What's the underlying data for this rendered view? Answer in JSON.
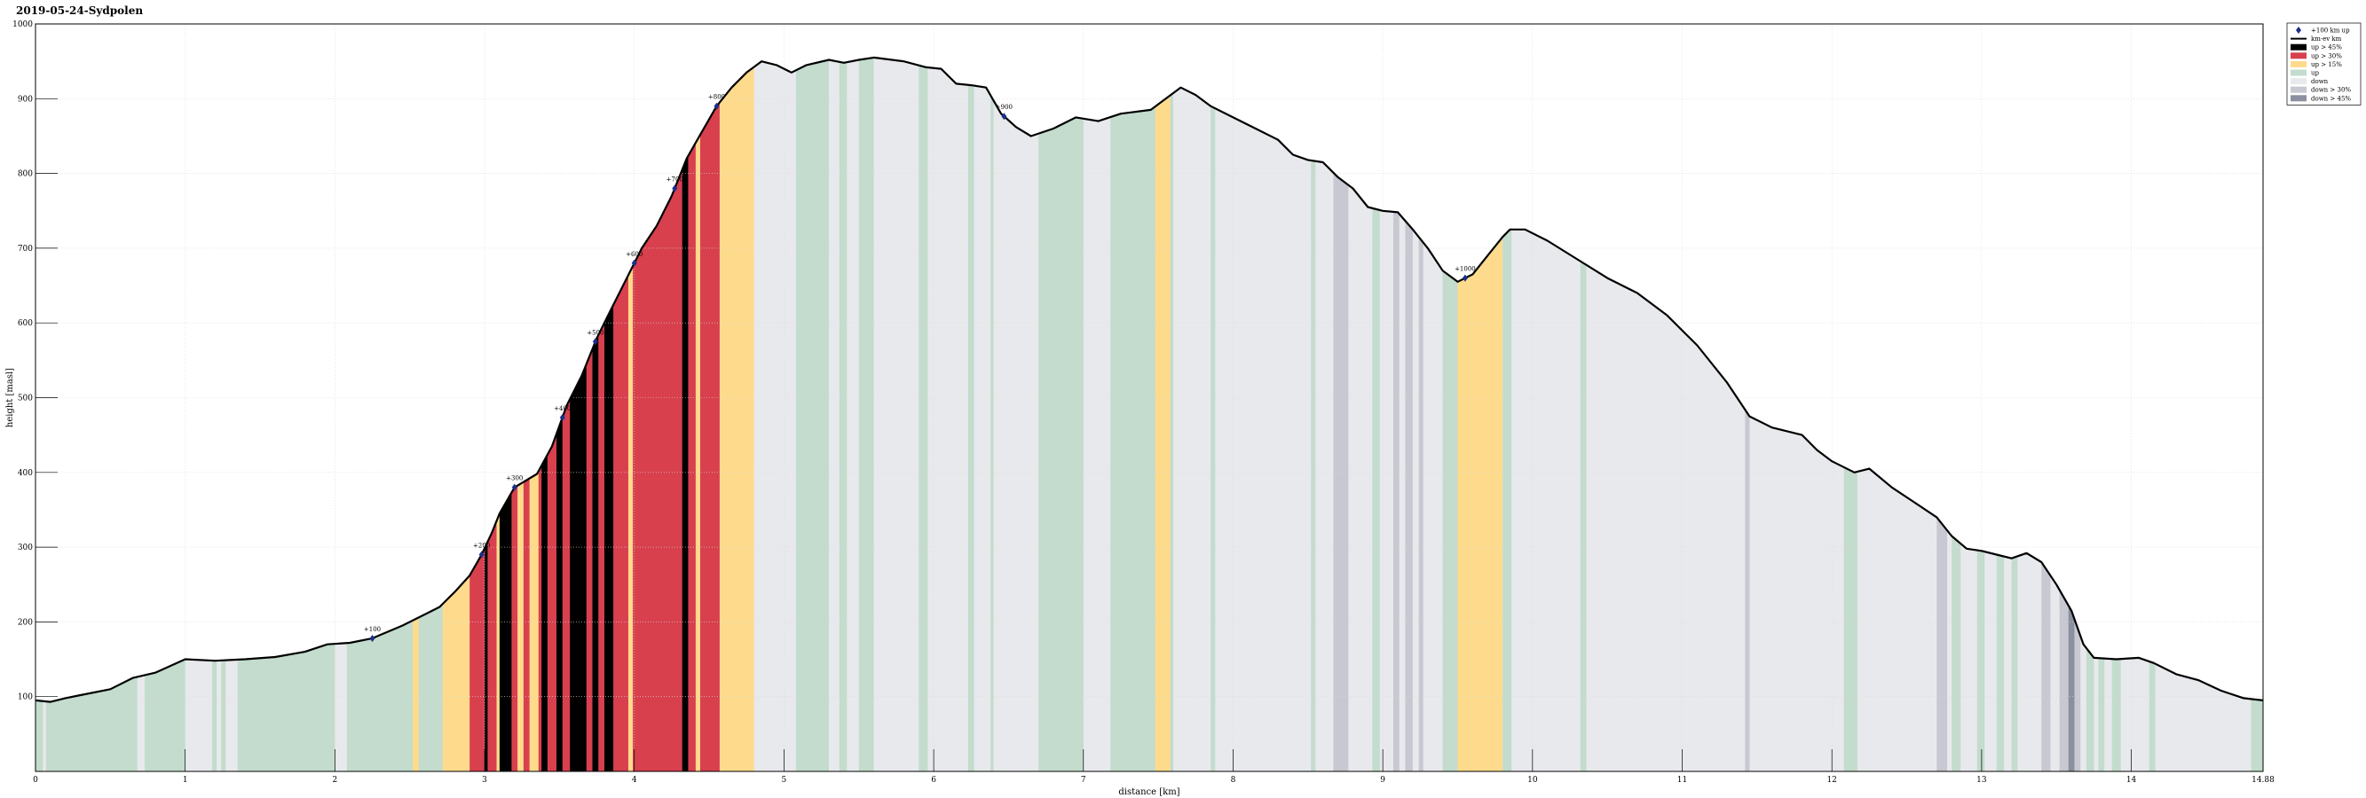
{
  "chart_data": {
    "type": "area",
    "title": "2019-05-24-Sydpolen",
    "xlabel": "distance [km]",
    "ylabel": "height [masl]",
    "xlim": [
      0,
      14.88
    ],
    "ylim": [
      0,
      1000
    ],
    "x_ticks": [
      0,
      1,
      2,
      3,
      4,
      5,
      6,
      7,
      8,
      9,
      10,
      11,
      12,
      13,
      14
    ],
    "x_end_label": "14.88",
    "y_ticks": [
      100,
      200,
      300,
      400,
      500,
      600,
      700,
      800,
      900,
      1000
    ],
    "grid": true,
    "legend_position": "top-right",
    "legend": [
      {
        "key": "marker",
        "label": "+100 km up"
      },
      {
        "key": "line",
        "label": "km·ev km"
      },
      {
        "key": "up45",
        "label": "up > 45%"
      },
      {
        "key": "up30",
        "label": "up > 30%"
      },
      {
        "key": "up15",
        "label": "up > 15%"
      },
      {
        "key": "up",
        "label": "up"
      },
      {
        "key": "down",
        "label": "down"
      },
      {
        "key": "down30",
        "label": "down > 30%"
      },
      {
        "key": "down45",
        "label": "down > 45%"
      }
    ],
    "colors": {
      "up": "#c3dccd",
      "down": "#e8e9ec",
      "up15": "#fedb8c",
      "up30": "#d8404e",
      "up45": "#000000",
      "down30": "#c7c8d1",
      "down45": "#8c8fa0",
      "line": "#000000",
      "marker": "#1a2f8a"
    },
    "profile": [
      [
        0,
        95
      ],
      [
        0.1,
        93
      ],
      [
        0.2,
        98
      ],
      [
        0.3,
        102
      ],
      [
        0.5,
        110
      ],
      [
        0.65,
        125
      ],
      [
        0.8,
        132
      ],
      [
        1.0,
        150
      ],
      [
        1.2,
        148
      ],
      [
        1.4,
        150
      ],
      [
        1.6,
        153
      ],
      [
        1.8,
        160
      ],
      [
        1.95,
        170
      ],
      [
        2.1,
        172
      ],
      [
        2.25,
        178
      ],
      [
        2.45,
        195
      ],
      [
        2.6,
        210
      ],
      [
        2.7,
        220
      ],
      [
        2.8,
        240
      ],
      [
        2.9,
        262
      ],
      [
        2.98,
        290
      ],
      [
        3.05,
        320
      ],
      [
        3.1,
        345
      ],
      [
        3.2,
        380
      ],
      [
        3.3,
        392
      ],
      [
        3.35,
        398
      ],
      [
        3.45,
        435
      ],
      [
        3.55,
        490
      ],
      [
        3.65,
        530
      ],
      [
        3.75,
        580
      ],
      [
        3.85,
        620
      ],
      [
        3.95,
        660
      ],
      [
        4.05,
        700
      ],
      [
        4.15,
        730
      ],
      [
        4.25,
        770
      ],
      [
        4.35,
        820
      ],
      [
        4.45,
        855
      ],
      [
        4.55,
        890
      ],
      [
        4.65,
        915
      ],
      [
        4.75,
        935
      ],
      [
        4.85,
        950
      ],
      [
        4.95,
        945
      ],
      [
        5.05,
        935
      ],
      [
        5.15,
        945
      ],
      [
        5.3,
        952
      ],
      [
        5.4,
        948
      ],
      [
        5.5,
        952
      ],
      [
        5.6,
        955
      ],
      [
        5.8,
        950
      ],
      [
        5.95,
        942
      ],
      [
        6.05,
        940
      ],
      [
        6.15,
        920
      ],
      [
        6.25,
        918
      ],
      [
        6.35,
        915
      ],
      [
        6.45,
        880
      ],
      [
        6.55,
        862
      ],
      [
        6.65,
        850
      ],
      [
        6.8,
        860
      ],
      [
        6.95,
        875
      ],
      [
        7.1,
        870
      ],
      [
        7.25,
        880
      ],
      [
        7.45,
        885
      ],
      [
        7.55,
        900
      ],
      [
        7.65,
        915
      ],
      [
        7.75,
        905
      ],
      [
        7.85,
        890
      ],
      [
        8.0,
        875
      ],
      [
        8.15,
        860
      ],
      [
        8.3,
        845
      ],
      [
        8.4,
        825
      ],
      [
        8.5,
        818
      ],
      [
        8.6,
        815
      ],
      [
        8.7,
        795
      ],
      [
        8.8,
        780
      ],
      [
        8.9,
        755
      ],
      [
        9.0,
        750
      ],
      [
        9.1,
        748
      ],
      [
        9.2,
        725
      ],
      [
        9.3,
        700
      ],
      [
        9.4,
        670
      ],
      [
        9.5,
        655
      ],
      [
        9.6,
        665
      ],
      [
        9.7,
        690
      ],
      [
        9.8,
        715
      ],
      [
        9.85,
        725
      ],
      [
        9.95,
        725
      ],
      [
        10.1,
        710
      ],
      [
        10.3,
        685
      ],
      [
        10.5,
        660
      ],
      [
        10.7,
        640
      ],
      [
        10.9,
        610
      ],
      [
        11.1,
        570
      ],
      [
        11.3,
        520
      ],
      [
        11.45,
        475
      ],
      [
        11.6,
        460
      ],
      [
        11.8,
        450
      ],
      [
        11.9,
        430
      ],
      [
        12.0,
        415
      ],
      [
        12.15,
        400
      ],
      [
        12.25,
        405
      ],
      [
        12.4,
        380
      ],
      [
        12.55,
        360
      ],
      [
        12.7,
        340
      ],
      [
        12.8,
        315
      ],
      [
        12.9,
        298
      ],
      [
        13.0,
        295
      ],
      [
        13.1,
        290
      ],
      [
        13.2,
        285
      ],
      [
        13.3,
        292
      ],
      [
        13.4,
        280
      ],
      [
        13.5,
        250
      ],
      [
        13.6,
        215
      ],
      [
        13.68,
        170
      ],
      [
        13.75,
        152
      ],
      [
        13.9,
        150
      ],
      [
        14.05,
        152
      ],
      [
        14.15,
        145
      ],
      [
        14.3,
        130
      ],
      [
        14.45,
        122
      ],
      [
        14.6,
        108
      ],
      [
        14.75,
        98
      ],
      [
        14.88,
        95
      ]
    ],
    "segments": [
      [
        0,
        0.05,
        "up"
      ],
      [
        0.05,
        0.07,
        "down"
      ],
      [
        0.07,
        0.68,
        "up"
      ],
      [
        0.68,
        0.73,
        "down"
      ],
      [
        0.73,
        1.0,
        "up"
      ],
      [
        1.0,
        1.18,
        "down"
      ],
      [
        1.18,
        1.21,
        "up"
      ],
      [
        1.21,
        1.24,
        "down"
      ],
      [
        1.24,
        1.27,
        "up"
      ],
      [
        1.27,
        1.35,
        "down"
      ],
      [
        1.35,
        2.0,
        "up"
      ],
      [
        2.0,
        2.08,
        "down"
      ],
      [
        2.08,
        2.52,
        "up"
      ],
      [
        2.52,
        2.56,
        "up15"
      ],
      [
        2.56,
        2.72,
        "up"
      ],
      [
        2.72,
        2.9,
        "up15"
      ],
      [
        2.9,
        3.0,
        "up30"
      ],
      [
        3.0,
        3.02,
        "up45"
      ],
      [
        3.02,
        3.08,
        "up30"
      ],
      [
        3.08,
        3.1,
        "up15"
      ],
      [
        3.1,
        3.18,
        "up45"
      ],
      [
        3.18,
        3.22,
        "up30"
      ],
      [
        3.22,
        3.26,
        "up15"
      ],
      [
        3.26,
        3.3,
        "up30"
      ],
      [
        3.3,
        3.36,
        "up15"
      ],
      [
        3.36,
        3.38,
        "up30"
      ],
      [
        3.38,
        3.42,
        "up45"
      ],
      [
        3.42,
        3.48,
        "up30"
      ],
      [
        3.48,
        3.52,
        "up45"
      ],
      [
        3.52,
        3.57,
        "up30"
      ],
      [
        3.57,
        3.68,
        "up45"
      ],
      [
        3.68,
        3.72,
        "up30"
      ],
      [
        3.72,
        3.76,
        "up45"
      ],
      [
        3.76,
        3.8,
        "up30"
      ],
      [
        3.8,
        3.86,
        "up45"
      ],
      [
        3.86,
        3.96,
        "up30"
      ],
      [
        3.96,
        3.99,
        "up15"
      ],
      [
        3.99,
        4.32,
        "up30"
      ],
      [
        4.32,
        4.36,
        "up45"
      ],
      [
        4.36,
        4.41,
        "up30"
      ],
      [
        4.41,
        4.44,
        "up15"
      ],
      [
        4.44,
        4.57,
        "up30"
      ],
      [
        4.57,
        4.8,
        "up15"
      ],
      [
        4.8,
        5.08,
        "down"
      ],
      [
        5.08,
        5.3,
        "up"
      ],
      [
        5.3,
        5.37,
        "down"
      ],
      [
        5.37,
        5.42,
        "up"
      ],
      [
        5.42,
        5.5,
        "down"
      ],
      [
        5.5,
        5.6,
        "up"
      ],
      [
        5.6,
        5.9,
        "down"
      ],
      [
        5.9,
        5.96,
        "up"
      ],
      [
        5.96,
        6.23,
        "down"
      ],
      [
        6.23,
        6.27,
        "up"
      ],
      [
        6.27,
        6.38,
        "down"
      ],
      [
        6.38,
        6.4,
        "up"
      ],
      [
        6.4,
        6.7,
        "down"
      ],
      [
        6.7,
        7.0,
        "up"
      ],
      [
        7.0,
        7.18,
        "down"
      ],
      [
        7.18,
        7.48,
        "up"
      ],
      [
        7.48,
        7.58,
        "up15"
      ],
      [
        7.58,
        7.6,
        "up"
      ],
      [
        7.6,
        7.85,
        "down"
      ],
      [
        7.85,
        7.88,
        "up"
      ],
      [
        7.88,
        8.52,
        "down"
      ],
      [
        8.52,
        8.55,
        "up"
      ],
      [
        8.55,
        8.67,
        "down"
      ],
      [
        8.67,
        8.77,
        "down30"
      ],
      [
        8.77,
        8.93,
        "down"
      ],
      [
        8.93,
        8.98,
        "up"
      ],
      [
        8.98,
        9.07,
        "down"
      ],
      [
        9.07,
        9.11,
        "down30"
      ],
      [
        9.11,
        9.15,
        "down"
      ],
      [
        9.15,
        9.2,
        "down30"
      ],
      [
        9.2,
        9.24,
        "down"
      ],
      [
        9.24,
        9.27,
        "down30"
      ],
      [
        9.27,
        9.4,
        "down"
      ],
      [
        9.4,
        9.5,
        "up"
      ],
      [
        9.5,
        9.8,
        "up15"
      ],
      [
        9.8,
        9.86,
        "up"
      ],
      [
        9.86,
        10.32,
        "down"
      ],
      [
        10.32,
        10.36,
        "up"
      ],
      [
        10.36,
        11.42,
        "down"
      ],
      [
        11.42,
        11.45,
        "down30"
      ],
      [
        11.45,
        12.08,
        "down"
      ],
      [
        12.08,
        12.17,
        "up"
      ],
      [
        12.17,
        12.7,
        "down"
      ],
      [
        12.7,
        12.77,
        "down30"
      ],
      [
        12.77,
        12.8,
        "down"
      ],
      [
        12.8,
        12.86,
        "up"
      ],
      [
        12.86,
        12.97,
        "down"
      ],
      [
        12.97,
        13.02,
        "up"
      ],
      [
        13.02,
        13.1,
        "down"
      ],
      [
        13.1,
        13.15,
        "up"
      ],
      [
        13.15,
        13.2,
        "down"
      ],
      [
        13.2,
        13.24,
        "up"
      ],
      [
        13.24,
        13.4,
        "down"
      ],
      [
        13.4,
        13.46,
        "down30"
      ],
      [
        13.46,
        13.52,
        "down"
      ],
      [
        13.52,
        13.58,
        "down30"
      ],
      [
        13.58,
        13.62,
        "down45"
      ],
      [
        13.62,
        13.66,
        "down30"
      ],
      [
        13.66,
        13.7,
        "down"
      ],
      [
        13.7,
        13.75,
        "up"
      ],
      [
        13.75,
        13.78,
        "down"
      ],
      [
        13.78,
        13.82,
        "up"
      ],
      [
        13.82,
        13.87,
        "down"
      ],
      [
        13.87,
        13.93,
        "up"
      ],
      [
        13.93,
        14.12,
        "down"
      ],
      [
        14.12,
        14.16,
        "up"
      ],
      [
        14.16,
        14.8,
        "down"
      ],
      [
        14.8,
        14.88,
        "up"
      ]
    ],
    "markers": [
      {
        "x": 2.25,
        "label": "+100"
      },
      {
        "x": 2.98,
        "label": "+200"
      },
      {
        "x": 3.2,
        "label": "+300"
      },
      {
        "x": 3.52,
        "label": "+400"
      },
      {
        "x": 3.74,
        "label": "+500"
      },
      {
        "x": 4.0,
        "label": "+600"
      },
      {
        "x": 4.27,
        "label": "+700"
      },
      {
        "x": 4.55,
        "label": "+800"
      },
      {
        "x": 6.47,
        "label": "+900"
      },
      {
        "x": 9.55,
        "label": "+1000"
      }
    ]
  }
}
